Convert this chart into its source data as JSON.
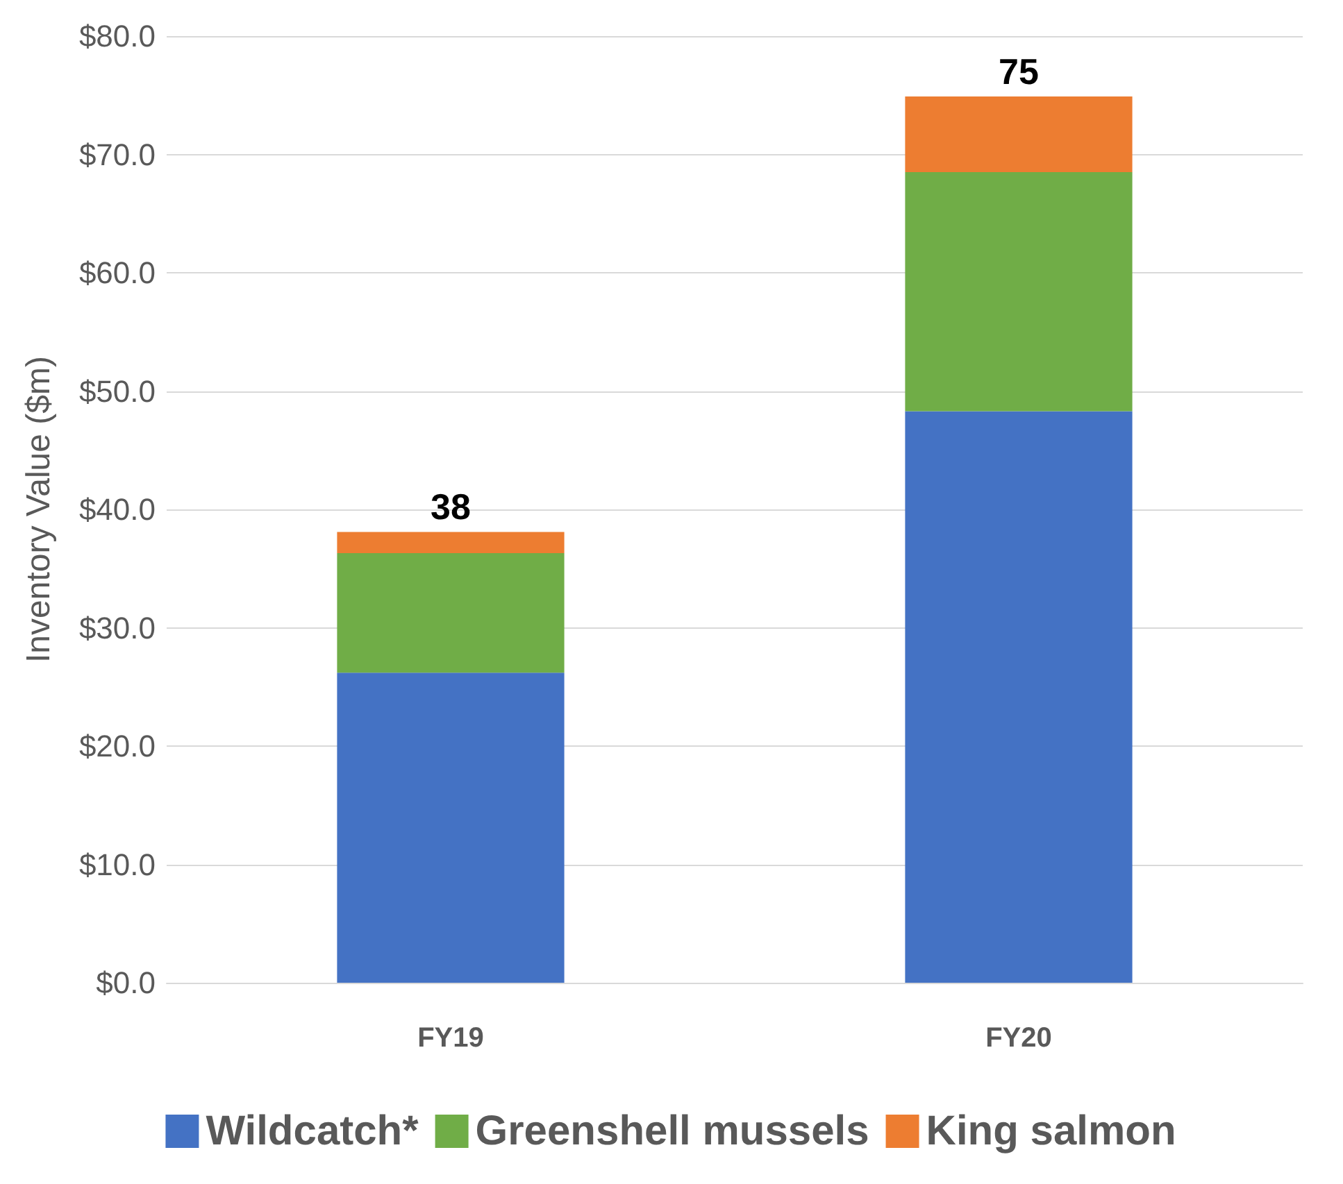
{
  "chart_data": {
    "type": "bar",
    "stacked": true,
    "ylabel": "Inventory Value ($m)",
    "categories": [
      "FY19",
      "FY20"
    ],
    "series": [
      {
        "name": "Wildcatch*",
        "color": "#4472c4",
        "values": [
          26.2,
          48.3
        ]
      },
      {
        "name": "Greenshell mussels",
        "color": "#70ad47",
        "values": [
          10.1,
          20.2
        ]
      },
      {
        "name": "King salmon",
        "color": "#ed7d31",
        "values": [
          1.8,
          6.4
        ]
      }
    ],
    "totals": [
      "38",
      "75"
    ],
    "ylim": [
      0,
      80
    ],
    "yticks": [
      {
        "value": 0,
        "label": "$0.0"
      },
      {
        "value": 10,
        "label": "$10.0"
      },
      {
        "value": 20,
        "label": "$20.0"
      },
      {
        "value": 30,
        "label": "$30.0"
      },
      {
        "value": 40,
        "label": "$40.0"
      },
      {
        "value": 50,
        "label": "$50.0"
      },
      {
        "value": 60,
        "label": "$60.0"
      },
      {
        "value": 70,
        "label": "$70.0"
      },
      {
        "value": 80,
        "label": "$80.0"
      }
    ],
    "grid": "y",
    "legend": "bottom"
  }
}
